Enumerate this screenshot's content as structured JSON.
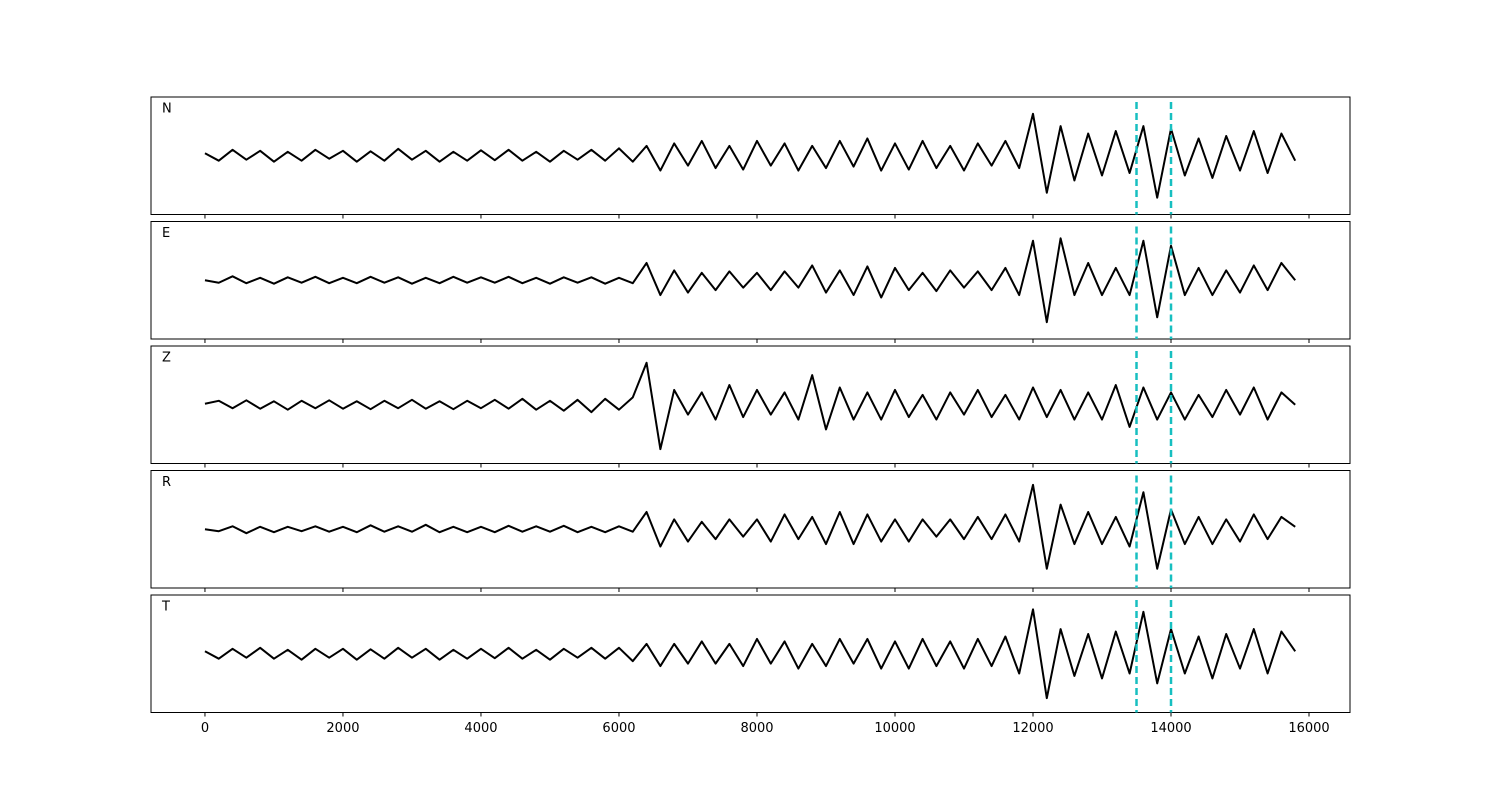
{
  "chart_data": {
    "type": "line",
    "x": [
      0,
      200,
      400,
      600,
      800,
      1000,
      1200,
      1400,
      1600,
      1800,
      2000,
      2200,
      2400,
      2600,
      2800,
      3000,
      3200,
      3400,
      3600,
      3800,
      4000,
      4200,
      4400,
      4600,
      4800,
      5000,
      5200,
      5400,
      5600,
      5800,
      6000,
      6200,
      6400,
      6600,
      6800,
      7000,
      7200,
      7400,
      7600,
      7800,
      8000,
      8200,
      8400,
      8600,
      8800,
      9000,
      9200,
      9400,
      9600,
      9800,
      10000,
      10200,
      10400,
      10600,
      10800,
      11000,
      11200,
      11400,
      11600,
      11800,
      12000,
      12200,
      12400,
      12600,
      12800,
      13000,
      13200,
      13400,
      13600,
      13800,
      14000,
      14200,
      14400,
      14600,
      14800,
      15000,
      15200,
      15400,
      15600,
      15800
    ],
    "xlim": [
      -782,
      16594
    ],
    "xticks": [
      0,
      2000,
      4000,
      6000,
      8000,
      10000,
      12000,
      14000,
      16000
    ],
    "ylim": [
      -1,
      1
    ],
    "vlines": [
      13500,
      14000
    ],
    "vline_color": "#17bfc0",
    "series": [
      {
        "name": "N",
        "color": "#000000",
        "values": [
          0.05,
          -0.1,
          0.12,
          -0.08,
          0.1,
          -0.12,
          0.08,
          -0.1,
          0.12,
          -0.06,
          0.1,
          -0.12,
          0.09,
          -0.1,
          0.14,
          -0.08,
          0.1,
          -0.12,
          0.08,
          -0.1,
          0.11,
          -0.09,
          0.12,
          -0.1,
          0.08,
          -0.12,
          0.1,
          -0.08,
          0.12,
          -0.1,
          0.15,
          -0.12,
          0.2,
          -0.3,
          0.25,
          -0.2,
          0.3,
          -0.25,
          0.2,
          -0.28,
          0.3,
          -0.2,
          0.25,
          -0.3,
          0.2,
          -0.25,
          0.3,
          -0.22,
          0.35,
          -0.3,
          0.25,
          -0.28,
          0.3,
          -0.25,
          0.2,
          -0.3,
          0.25,
          -0.2,
          0.3,
          -0.25,
          0.85,
          -0.75,
          0.6,
          -0.5,
          0.45,
          -0.4,
          0.5,
          -0.35,
          0.6,
          -0.85,
          0.55,
          -0.4,
          0.35,
          -0.45,
          0.4,
          -0.3,
          0.5,
          -0.35,
          0.45,
          -0.1
        ]
      },
      {
        "name": "E",
        "color": "#000000",
        "values": [
          0.0,
          -0.05,
          0.08,
          -0.06,
          0.05,
          -0.07,
          0.06,
          -0.05,
          0.07,
          -0.06,
          0.05,
          -0.06,
          0.07,
          -0.05,
          0.06,
          -0.07,
          0.05,
          -0.06,
          0.07,
          -0.05,
          0.06,
          -0.05,
          0.07,
          -0.06,
          0.05,
          -0.07,
          0.06,
          -0.05,
          0.06,
          -0.07,
          0.05,
          -0.06,
          0.35,
          -0.3,
          0.2,
          -0.25,
          0.15,
          -0.2,
          0.18,
          -0.15,
          0.15,
          -0.2,
          0.18,
          -0.15,
          0.3,
          -0.25,
          0.2,
          -0.3,
          0.28,
          -0.35,
          0.25,
          -0.2,
          0.15,
          -0.22,
          0.2,
          -0.15,
          0.18,
          -0.2,
          0.25,
          -0.3,
          0.8,
          -0.85,
          0.85,
          -0.3,
          0.35,
          -0.3,
          0.25,
          -0.3,
          0.8,
          -0.75,
          0.7,
          -0.3,
          0.25,
          -0.3,
          0.2,
          -0.25,
          0.3,
          -0.2,
          0.35,
          0.0
        ]
      },
      {
        "name": "Z",
        "color": "#000000",
        "values": [
          0.02,
          0.08,
          -0.07,
          0.09,
          -0.08,
          0.07,
          -0.1,
          0.08,
          -0.07,
          0.09,
          -0.08,
          0.07,
          -0.09,
          0.08,
          -0.07,
          0.1,
          -0.08,
          0.07,
          -0.09,
          0.08,
          -0.07,
          0.1,
          -0.08,
          0.12,
          -0.1,
          0.08,
          -0.12,
          0.1,
          -0.15,
          0.12,
          -0.1,
          0.15,
          0.85,
          -0.9,
          0.3,
          -0.2,
          0.25,
          -0.3,
          0.4,
          -0.25,
          0.3,
          -0.2,
          0.25,
          -0.3,
          0.6,
          -0.5,
          0.35,
          -0.3,
          0.25,
          -0.3,
          0.3,
          -0.25,
          0.2,
          -0.3,
          0.25,
          -0.2,
          0.3,
          -0.25,
          0.2,
          -0.3,
          0.35,
          -0.25,
          0.3,
          -0.3,
          0.25,
          -0.3,
          0.4,
          -0.45,
          0.35,
          -0.3,
          0.25,
          -0.3,
          0.2,
          -0.25,
          0.3,
          -0.2,
          0.35,
          -0.3,
          0.25,
          0.0
        ]
      },
      {
        "name": "R",
        "color": "#000000",
        "values": [
          0.0,
          -0.04,
          0.06,
          -0.08,
          0.05,
          -0.06,
          0.05,
          -0.04,
          0.06,
          -0.05,
          0.05,
          -0.06,
          0.08,
          -0.05,
          0.06,
          -0.05,
          0.09,
          -0.06,
          0.05,
          -0.06,
          0.05,
          -0.06,
          0.07,
          -0.05,
          0.06,
          -0.05,
          0.07,
          -0.06,
          0.05,
          -0.06,
          0.06,
          -0.05,
          0.35,
          -0.35,
          0.2,
          -0.25,
          0.15,
          -0.2,
          0.2,
          -0.15,
          0.2,
          -0.25,
          0.3,
          -0.2,
          0.25,
          -0.3,
          0.35,
          -0.3,
          0.3,
          -0.25,
          0.2,
          -0.25,
          0.2,
          -0.15,
          0.2,
          -0.2,
          0.25,
          -0.2,
          0.3,
          -0.25,
          0.9,
          -0.8,
          0.5,
          -0.3,
          0.35,
          -0.3,
          0.25,
          -0.35,
          0.75,
          -0.8,
          0.4,
          -0.3,
          0.25,
          -0.3,
          0.2,
          -0.25,
          0.3,
          -0.2,
          0.25,
          0.05
        ]
      },
      {
        "name": "T",
        "color": "#000000",
        "values": [
          0.05,
          -0.1,
          0.1,
          -0.08,
          0.12,
          -0.1,
          0.08,
          -0.12,
          0.1,
          -0.08,
          0.1,
          -0.12,
          0.09,
          -0.1,
          0.12,
          -0.08,
          0.1,
          -0.12,
          0.08,
          -0.1,
          0.1,
          -0.09,
          0.12,
          -0.1,
          0.08,
          -0.12,
          0.1,
          -0.08,
          0.12,
          -0.1,
          0.12,
          -0.15,
          0.2,
          -0.25,
          0.2,
          -0.2,
          0.25,
          -0.2,
          0.2,
          -0.25,
          0.3,
          -0.2,
          0.25,
          -0.3,
          0.2,
          -0.25,
          0.3,
          -0.2,
          0.3,
          -0.3,
          0.25,
          -0.3,
          0.3,
          -0.25,
          0.25,
          -0.3,
          0.3,
          -0.25,
          0.35,
          -0.4,
          0.9,
          -0.9,
          0.5,
          -0.45,
          0.4,
          -0.5,
          0.45,
          -0.4,
          0.85,
          -0.6,
          0.5,
          -0.4,
          0.35,
          -0.5,
          0.4,
          -0.3,
          0.5,
          -0.4,
          0.45,
          0.05
        ]
      }
    ]
  }
}
